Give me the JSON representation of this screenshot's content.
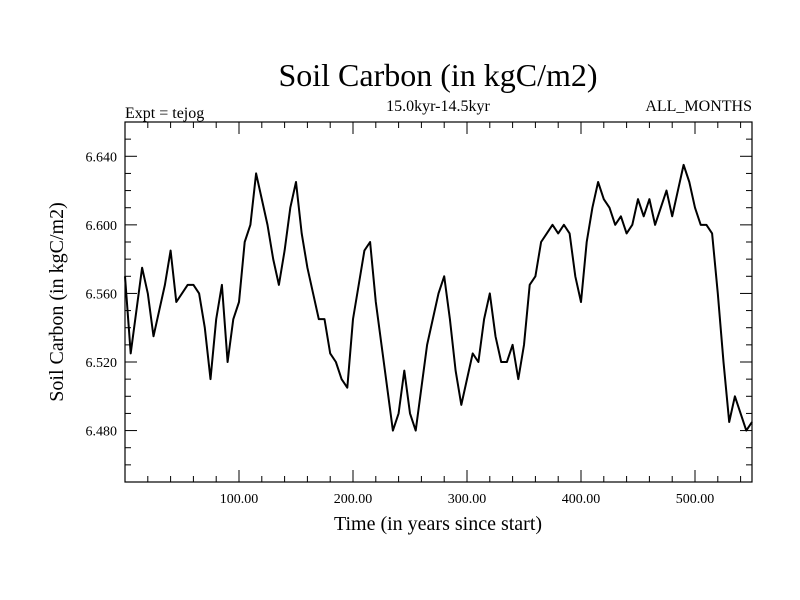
{
  "chart_data": {
    "type": "line",
    "title": "Soil Carbon (in kgC/m2)",
    "subtitle": "15.0kyr-14.5kyr",
    "left_label": "Expt = tejog",
    "right_label": "ALL_MONTHS",
    "xlabel": "Time (in years since start)",
    "ylabel": "Soil Carbon (in kgC/m2)",
    "xlim": [
      0,
      550
    ],
    "ylim": [
      6.45,
      6.66
    ],
    "x_ticks": [
      {
        "value": 100,
        "label": "100.00"
      },
      {
        "value": 200,
        "label": "200.00"
      },
      {
        "value": 300,
        "label": "300.00"
      },
      {
        "value": 400,
        "label": "400.00"
      },
      {
        "value": 500,
        "label": "500.00"
      }
    ],
    "y_ticks": [
      {
        "value": 6.48,
        "label": "6.480"
      },
      {
        "value": 6.52,
        "label": "6.520"
      },
      {
        "value": 6.56,
        "label": "6.560"
      },
      {
        "value": 6.6,
        "label": "6.600"
      },
      {
        "value": 6.64,
        "label": "6.640"
      }
    ],
    "x_minor_step": 20,
    "y_minor_step": 0.01,
    "grid": false,
    "series": [
      {
        "name": "Soil Carbon",
        "color": "#000000",
        "x": [
          0,
          5,
          10,
          15,
          20,
          25,
          30,
          35,
          40,
          45,
          50,
          55,
          60,
          65,
          70,
          75,
          80,
          85,
          90,
          95,
          100,
          105,
          110,
          115,
          120,
          125,
          130,
          135,
          140,
          145,
          150,
          155,
          160,
          165,
          170,
          175,
          180,
          185,
          190,
          195,
          200,
          205,
          210,
          215,
          220,
          225,
          230,
          235,
          240,
          245,
          250,
          255,
          260,
          265,
          270,
          275,
          280,
          285,
          290,
          295,
          300,
          305,
          310,
          315,
          320,
          325,
          330,
          335,
          340,
          345,
          350,
          355,
          360,
          365,
          370,
          375,
          380,
          385,
          390,
          395,
          400,
          405,
          410,
          415,
          420,
          425,
          430,
          435,
          440,
          445,
          450,
          455,
          460,
          465,
          470,
          475,
          480,
          485,
          490,
          495,
          500,
          505,
          510,
          515,
          520,
          525,
          530,
          535,
          540,
          545,
          550
        ],
        "values": [
          6.57,
          6.525,
          6.55,
          6.575,
          6.56,
          6.535,
          6.55,
          6.565,
          6.585,
          6.555,
          6.56,
          6.565,
          6.565,
          6.56,
          6.54,
          6.51,
          6.545,
          6.565,
          6.52,
          6.545,
          6.555,
          6.59,
          6.6,
          6.63,
          6.615,
          6.6,
          6.58,
          6.565,
          6.585,
          6.61,
          6.625,
          6.595,
          6.575,
          6.56,
          6.545,
          6.545,
          6.525,
          6.52,
          6.51,
          6.505,
          6.545,
          6.565,
          6.585,
          6.59,
          6.555,
          6.53,
          6.505,
          6.48,
          6.49,
          6.515,
          6.49,
          6.48,
          6.505,
          6.53,
          6.545,
          6.56,
          6.57,
          6.545,
          6.515,
          6.495,
          6.51,
          6.525,
          6.52,
          6.545,
          6.56,
          6.535,
          6.52,
          6.52,
          6.53,
          6.51,
          6.53,
          6.565,
          6.57,
          6.59,
          6.595,
          6.6,
          6.595,
          6.6,
          6.595,
          6.57,
          6.555,
          6.59,
          6.61,
          6.625,
          6.615,
          6.61,
          6.6,
          6.605,
          6.595,
          6.6,
          6.615,
          6.605,
          6.615,
          6.6,
          6.61,
          6.62,
          6.605,
          6.62,
          6.635,
          6.625,
          6.61,
          6.6,
          6.6,
          6.595,
          6.56,
          6.52,
          6.485,
          6.5,
          6.49,
          6.48,
          6.485
        ]
      }
    ]
  }
}
